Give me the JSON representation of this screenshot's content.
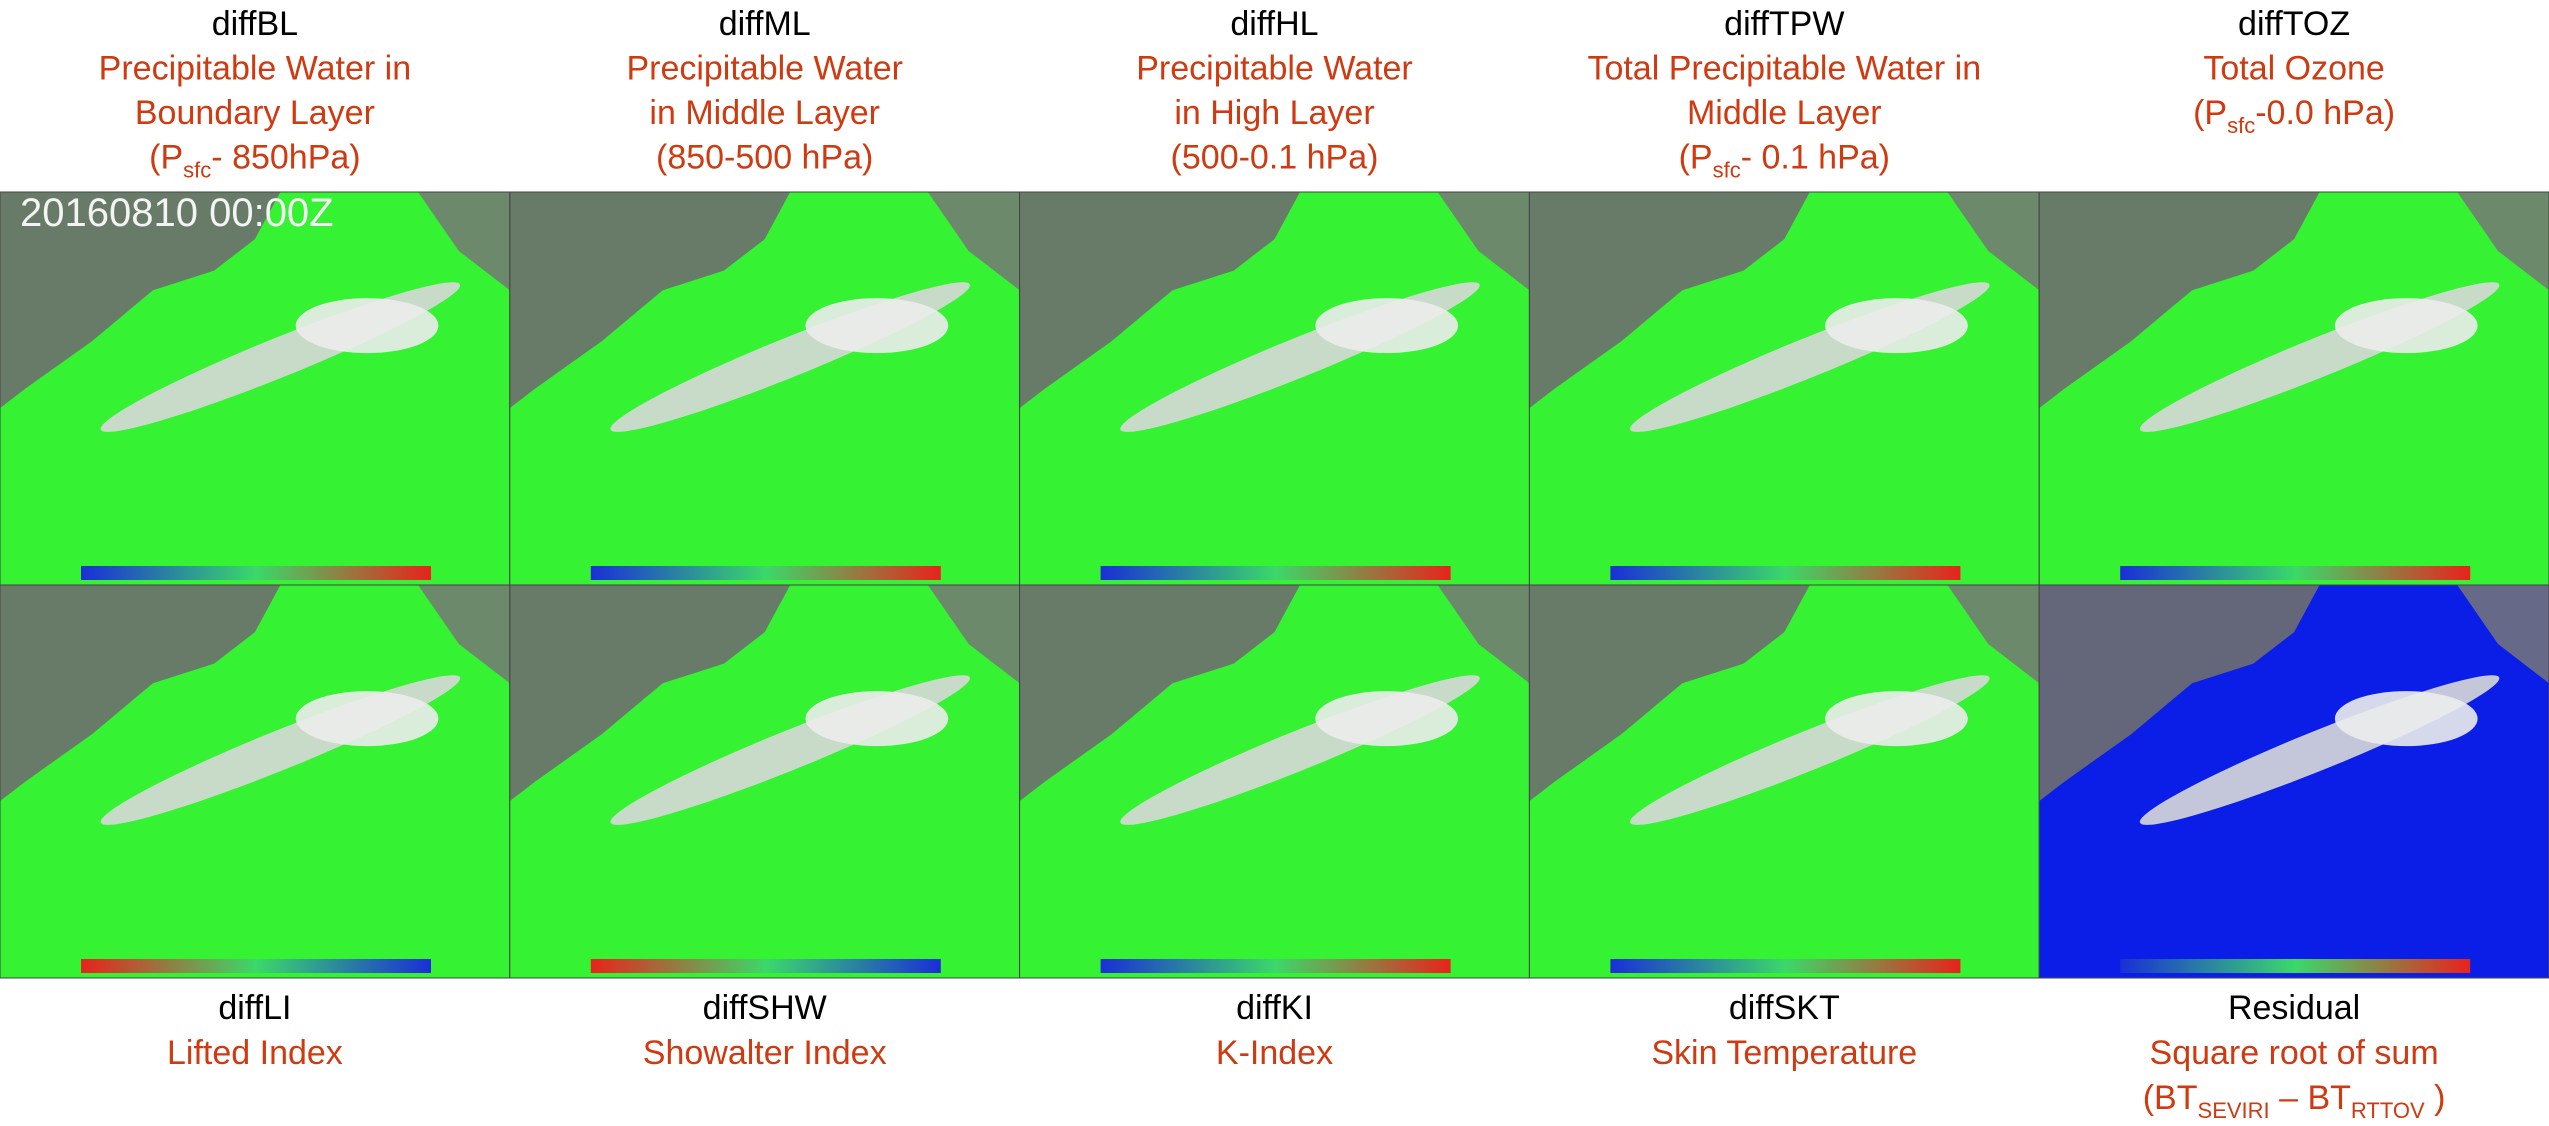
{
  "timestamp": "20160810 00:00Z",
  "panels": [
    {
      "name": "diffBL",
      "title": [
        [
          {
            "text": "Precipitable Water in"
          }
        ],
        [
          {
            "text": "Boundary Layer"
          }
        ],
        [
          {
            "text": "(P"
          },
          {
            "text": "sfc",
            "sub": true
          },
          {
            "text": "- 850hPa)"
          }
        ]
      ],
      "background": "#35f233",
      "colorbar": [
        "#1a2fd6",
        "#3bd86a",
        "#e8231c"
      ]
    },
    {
      "name": "diffML",
      "title": [
        [
          {
            "text": "Precipitable Water"
          }
        ],
        [
          {
            "text": "in Middle Layer"
          }
        ],
        [
          {
            "text": "(850-500 hPa)"
          }
        ]
      ],
      "background": "#35f233",
      "colorbar": [
        "#1a2fd6",
        "#3bd86a",
        "#e8231c"
      ]
    },
    {
      "name": "diffHL",
      "title": [
        [
          {
            "text": "Precipitable Water"
          }
        ],
        [
          {
            "text": "in High Layer"
          }
        ],
        [
          {
            "text": "(500-0.1 hPa)"
          }
        ]
      ],
      "background": "#35f233",
      "colorbar": [
        "#1a2fd6",
        "#3bd86a",
        "#e8231c"
      ]
    },
    {
      "name": "diffTPW",
      "title": [
        [
          {
            "text": "Total Precipitable Water in"
          }
        ],
        [
          {
            "text": "Middle Layer"
          }
        ],
        [
          {
            "text": "(P"
          },
          {
            "text": "sfc",
            "sub": true
          },
          {
            "text": "- 0.1 hPa)"
          }
        ]
      ],
      "background": "#35f233",
      "colorbar": [
        "#1a2fd6",
        "#3bd86a",
        "#e8231c"
      ]
    },
    {
      "name": "diffTOZ",
      "title": [
        [
          {
            "text": "Total Ozone"
          }
        ],
        [
          {
            "text": "(P"
          },
          {
            "text": "sfc",
            "sub": true
          },
          {
            "text": "-0.0 hPa)"
          }
        ]
      ],
      "background": "#35f233",
      "colorbar": [
        "#1a2fd6",
        "#3bd86a",
        "#e8231c"
      ]
    },
    {
      "name": "diffLI",
      "title": [
        [
          {
            "text": "Lifted Index"
          }
        ]
      ],
      "background": "#35f233",
      "colorbar": [
        "#e8231c",
        "#3bd86a",
        "#1a2fd6"
      ]
    },
    {
      "name": "diffSHW",
      "title": [
        [
          {
            "text": "Showalter Index"
          }
        ]
      ],
      "background": "#35f233",
      "colorbar": [
        "#e8231c",
        "#3bd86a",
        "#1a2fd6"
      ]
    },
    {
      "name": "diffKI",
      "title": [
        [
          {
            "text": "K-Index"
          }
        ]
      ],
      "background": "#35f233",
      "colorbar": [
        "#1a2fd6",
        "#3bd86a",
        "#e8231c"
      ]
    },
    {
      "name": "diffSKT",
      "title": [
        [
          {
            "text": "Skin Temperature"
          }
        ]
      ],
      "background": "#35f233",
      "colorbar": [
        "#1a2fd6",
        "#3bd86a",
        "#e8231c"
      ]
    },
    {
      "name": "Residual",
      "title": [
        [
          {
            "text": "Square root of sum"
          }
        ],
        [
          {
            "text": "(BT"
          },
          {
            "text": "SEVIRI",
            "sub": true
          },
          {
            "text": " – BT"
          },
          {
            "text": "RTTOV",
            "sub": true
          },
          {
            "text": " )"
          }
        ]
      ],
      "background": "#0a1ee8",
      "colorbar": [
        "#1a2fd6",
        "#3bd86a",
        "#e8231c"
      ]
    }
  ]
}
